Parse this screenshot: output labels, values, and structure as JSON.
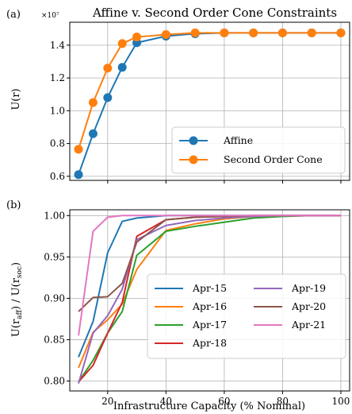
{
  "chart_data": [
    {
      "panel_tag": "(a)",
      "type": "line",
      "title": "Affine v. Second Order Cone Constraints",
      "ylabel": "U(r)",
      "y_multiplier": "×10⁷",
      "xlim": [
        7,
        103
      ],
      "ylim": [
        0.575,
        1.54
      ],
      "xticks": [
        20,
        40,
        60,
        80,
        100
      ],
      "yticks": [
        0.6,
        0.8,
        1.0,
        1.2,
        1.4
      ],
      "ytick_labels": [
        "0.6",
        "0.8",
        "1.0",
        "1.2",
        "1.4"
      ],
      "grid": true,
      "legend_position": "lower-right",
      "x": [
        10,
        15,
        20,
        25,
        30,
        40,
        50,
        60,
        70,
        80,
        90,
        100
      ],
      "series": [
        {
          "name": "Affine",
          "color": "#1f77b4",
          "marker": "circle",
          "values": [
            0.61,
            0.86,
            1.08,
            1.265,
            1.415,
            1.455,
            1.47,
            1.475,
            1.475,
            1.475,
            1.475,
            1.475
          ]
        },
        {
          "name": "Second Order Cone",
          "color": "#ff7f0e",
          "marker": "circle",
          "values": [
            0.765,
            1.05,
            1.26,
            1.41,
            1.45,
            1.465,
            1.475,
            1.475,
            1.475,
            1.475,
            1.475,
            1.475
          ]
        }
      ]
    },
    {
      "panel_tag": "(b)",
      "type": "line",
      "xlabel": "Infrastructure Capacity (% Nominal)",
      "ylabel_main": "U(r",
      "ylabel_sub1": "aff",
      "ylabel_mid": ") / U(r",
      "ylabel_sub2": "soc",
      "ylabel_end": ")",
      "xlim": [
        7,
        103
      ],
      "ylim": [
        0.788,
        1.007
      ],
      "xticks": [
        20,
        40,
        60,
        80,
        100
      ],
      "xtick_labels": [
        "20",
        "40",
        "60",
        "80",
        "100"
      ],
      "yticks": [
        0.8,
        0.85,
        0.9,
        0.95,
        1.0
      ],
      "ytick_labels": [
        "0.80",
        "0.85",
        "0.90",
        "0.95",
        "1.00"
      ],
      "grid": true,
      "legend_position": "lower-right",
      "x": [
        10,
        15,
        20,
        25,
        30,
        40,
        50,
        60,
        70,
        80,
        90,
        100
      ],
      "series": [
        {
          "name": "Apr-15",
          "color": "#1f77b4",
          "values": [
            0.829,
            0.872,
            0.955,
            0.993,
            0.997,
            1.0,
            1.0,
            1.0,
            1.0,
            1.0,
            1.0,
            1.0
          ]
        },
        {
          "name": "Apr-16",
          "color": "#ff7f0e",
          "values": [
            0.816,
            0.859,
            0.874,
            0.893,
            0.935,
            0.982,
            0.99,
            0.996,
            0.999,
            1.0,
            1.0,
            1.0
          ]
        },
        {
          "name": "Apr-17",
          "color": "#2ca02c",
          "values": [
            0.799,
            0.825,
            0.858,
            0.884,
            0.952,
            0.981,
            0.987,
            0.992,
            0.997,
            0.999,
            1.0,
            1.0
          ]
        },
        {
          "name": "Apr-18",
          "color": "#d62728",
          "values": [
            0.799,
            0.819,
            0.858,
            0.895,
            0.975,
            0.995,
            0.998,
            0.999,
            1.0,
            1.0,
            1.0,
            1.0
          ]
        },
        {
          "name": "Apr-19",
          "color": "#9467bd",
          "values": [
            0.797,
            0.858,
            0.879,
            0.911,
            0.971,
            0.988,
            0.994,
            0.997,
            0.999,
            1.0,
            1.0,
            1.0
          ]
        },
        {
          "name": "Apr-20",
          "color": "#8c564b",
          "values": [
            0.884,
            0.901,
            0.902,
            0.918,
            0.968,
            0.995,
            0.998,
            0.999,
            1.0,
            1.0,
            1.0,
            1.0
          ]
        },
        {
          "name": "Apr-21",
          "color": "#e377c2",
          "values": [
            0.855,
            0.981,
            0.998,
            1.0,
            1.0,
            1.0,
            1.0,
            1.0,
            1.0,
            1.0,
            1.0,
            1.0
          ]
        }
      ]
    }
  ]
}
